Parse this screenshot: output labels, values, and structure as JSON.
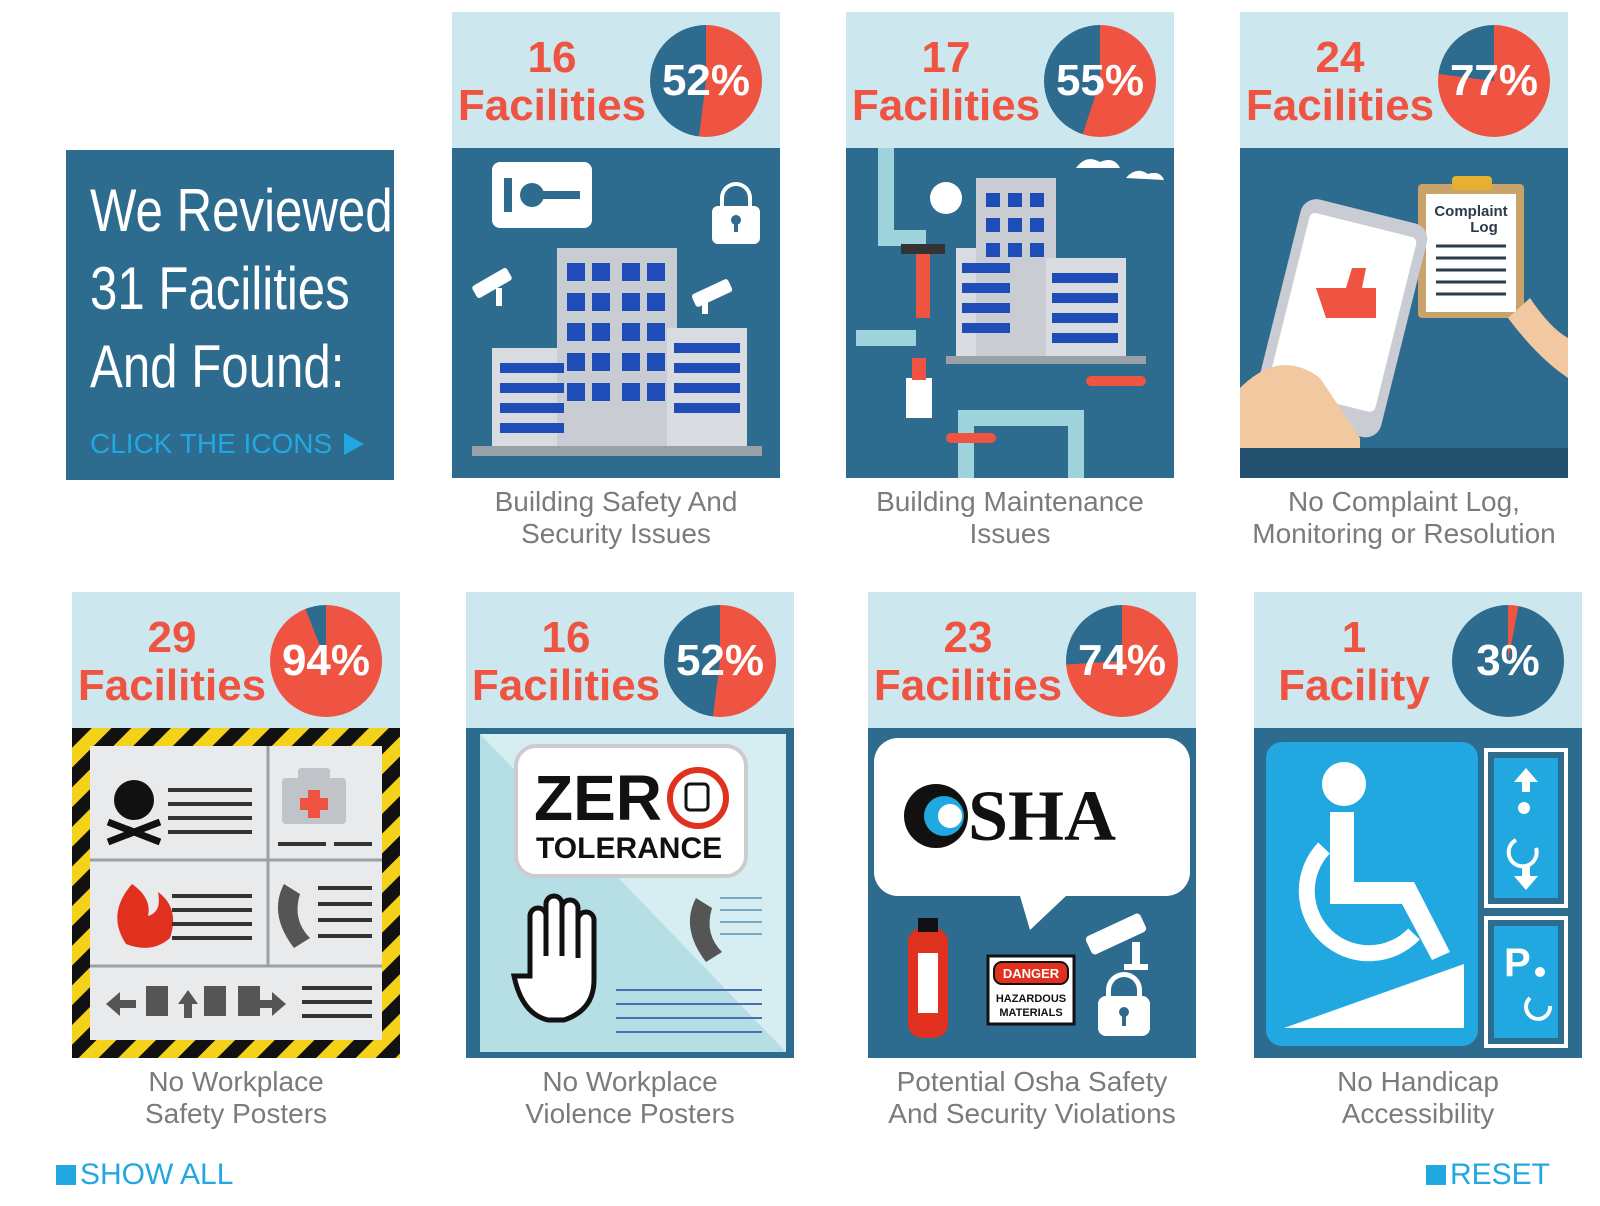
{
  "intro": {
    "headline_1": "We Reviewed",
    "headline_2": "31 Facilities",
    "headline_3": "And Found:",
    "cta": "CLICK THE ICONS"
  },
  "colors": {
    "dark": "#2d6b8f",
    "accent": "#ee5441",
    "light": "#cce8ee",
    "link": "#22a8e0",
    "caption": "#7b7b7b"
  },
  "cards": [
    {
      "count": "16",
      "unit": "Facilities",
      "percent_label": "52%",
      "percent": 52,
      "caption": "Building Safety And\nSecurity Issues",
      "icon": "building-security-icon"
    },
    {
      "count": "17",
      "unit": "Facilities",
      "percent_label": "55%",
      "percent": 55,
      "caption": "Building Maintenance\nIssues",
      "icon": "building-maintenance-icon"
    },
    {
      "count": "24",
      "unit": "Facilities",
      "percent_label": "77%",
      "percent": 77,
      "caption": "No Complaint Log,\nMonitoring or Resolution",
      "icon": "complaint-log-icon"
    },
    {
      "count": "29",
      "unit": "Facilities",
      "percent_label": "94%",
      "percent": 94,
      "caption": "No Workplace\nSafety Posters",
      "icon": "safety-poster-icon"
    },
    {
      "count": "16",
      "unit": "Facilities",
      "percent_label": "52%",
      "percent": 52,
      "caption": "No Workplace\nViolence Posters",
      "icon": "zero-tolerance-icon"
    },
    {
      "count": "23",
      "unit": "Facilities",
      "percent_label": "74%",
      "percent": 74,
      "caption": "Potential Osha Safety\nAnd Security Violations",
      "icon": "osha-icon"
    },
    {
      "count": "1",
      "unit": "Facility",
      "percent_label": "3%",
      "percent": 3,
      "caption": "No Handicap\nAccessibility",
      "icon": "handicap-icon"
    }
  ],
  "illustration_text": {
    "complaint_log": "Complaint\nLog",
    "zero": "ZER",
    "tolerance": "TOLERANCE",
    "osha": "OSHA",
    "danger": "DANGER",
    "hazardous": "HAZARDOUS",
    "materials": "MATERIALS"
  },
  "footer": {
    "show_all": "SHOW ALL",
    "reset": "RESET"
  }
}
